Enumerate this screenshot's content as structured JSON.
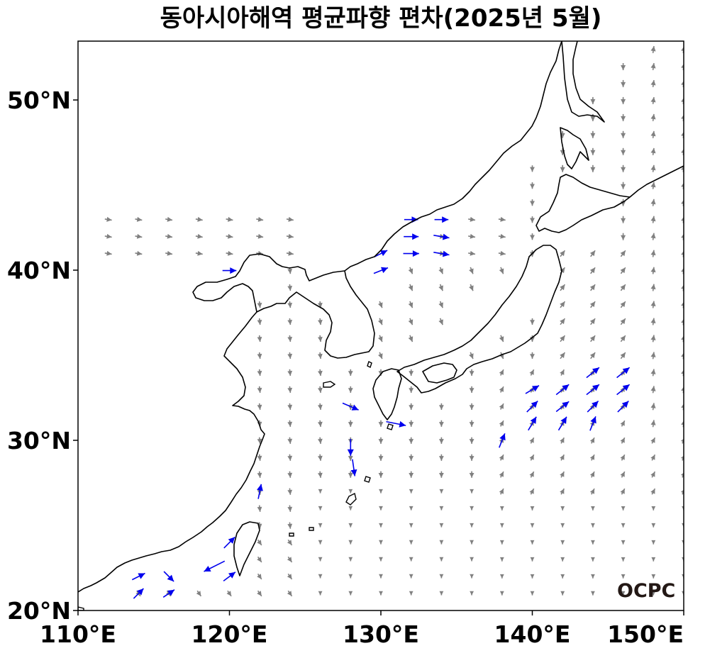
{
  "title": "동아시아해역 평균파향 편차(2025년 5월)",
  "logo_text": "OCPC",
  "colors": {
    "normal_arrow": "#808080",
    "anomaly_arrow": "#0000ee",
    "coastline": "#000000"
  },
  "map": {
    "lon_range": [
      110,
      150
    ],
    "lat_range": [
      20,
      53.5
    ],
    "x_ticks": [
      {
        "value": 110,
        "label": "110°E"
      },
      {
        "value": 120,
        "label": "120°E"
      },
      {
        "value": 130,
        "label": "130°E"
      },
      {
        "value": 140,
        "label": "140°E"
      },
      {
        "value": 150,
        "label": "150°E"
      }
    ],
    "y_ticks": [
      {
        "value": 20,
        "label": "20°N"
      },
      {
        "value": 30,
        "label": "30°N"
      },
      {
        "value": 40,
        "label": "40°N"
      },
      {
        "value": 50,
        "label": "50°N"
      }
    ]
  },
  "highlighted_vectors": [
    {
      "lon": 114,
      "lat": 22,
      "u": 0.4,
      "v": 0.2
    },
    {
      "lon": 116,
      "lat": 22,
      "u": 0.3,
      "v": -0.3
    },
    {
      "lon": 114,
      "lat": 21,
      "u": 0.3,
      "v": 0.3
    },
    {
      "lon": 116,
      "lat": 21,
      "u": 0.3,
      "v": 0.2
    },
    {
      "lon": 120,
      "lat": 24,
      "u": 0.4,
      "v": 0.4
    },
    {
      "lon": 120,
      "lat": 22,
      "u": 0.4,
      "v": 0.3
    },
    {
      "lon": 119,
      "lat": 22.6,
      "u": -1.2,
      "v": -0.6
    },
    {
      "lon": 122,
      "lat": 27,
      "u": 0.1,
      "v": 0.5
    },
    {
      "lon": 120,
      "lat": 40,
      "u": 0.4,
      "v": 0
    },
    {
      "lon": 128,
      "lat": 32,
      "u": 0.7,
      "v": -0.3
    },
    {
      "lon": 131,
      "lat": 31,
      "u": 1.0,
      "v": -0.2
    },
    {
      "lon": 128,
      "lat": 29.6,
      "u": 0,
      "v": -0.7
    },
    {
      "lon": 128.2,
      "lat": 28.4,
      "u": 0.1,
      "v": -0.7
    },
    {
      "lon": 130,
      "lat": 41,
      "u": 0.4,
      "v": 0.2
    },
    {
      "lon": 130,
      "lat": 40,
      "u": 0.5,
      "v": 0.2
    },
    {
      "lon": 132,
      "lat": 42,
      "u": 0.5,
      "v": 0
    },
    {
      "lon": 134,
      "lat": 42,
      "u": 0.6,
      "v": -0.1
    },
    {
      "lon": 132,
      "lat": 41,
      "u": 0.6,
      "v": 0
    },
    {
      "lon": 134,
      "lat": 41,
      "u": 0.6,
      "v": -0.1
    },
    {
      "lon": 132,
      "lat": 43,
      "u": 0.4,
      "v": 0
    },
    {
      "lon": 134,
      "lat": 43,
      "u": 0.4,
      "v": 0
    },
    {
      "lon": 138,
      "lat": 30,
      "u": 0.2,
      "v": 0.5
    },
    {
      "lon": 140,
      "lat": 33,
      "u": 0.5,
      "v": 0.3
    },
    {
      "lon": 142,
      "lat": 33,
      "u": 0.5,
      "v": 0.4
    },
    {
      "lon": 144,
      "lat": 34,
      "u": 0.5,
      "v": 0.4
    },
    {
      "lon": 146,
      "lat": 34,
      "u": 0.5,
      "v": 0.4
    },
    {
      "lon": 140,
      "lat": 32,
      "u": 0.4,
      "v": 0.4
    },
    {
      "lon": 142,
      "lat": 32,
      "u": 0.5,
      "v": 0.4
    },
    {
      "lon": 144,
      "lat": 33,
      "u": 0.5,
      "v": 0.4
    },
    {
      "lon": 146,
      "lat": 33,
      "u": 0.5,
      "v": 0.4
    },
    {
      "lon": 140,
      "lat": 31,
      "u": 0.3,
      "v": 0.5
    },
    {
      "lon": 142,
      "lat": 31,
      "u": 0.3,
      "v": 0.5
    },
    {
      "lon": 144,
      "lat": 32,
      "u": 0.4,
      "v": 0.4
    },
    {
      "lon": 146,
      "lat": 32,
      "u": 0.4,
      "v": 0.4
    },
    {
      "lon": 144,
      "lat": 31,
      "u": 0.2,
      "v": 0.5
    }
  ]
}
